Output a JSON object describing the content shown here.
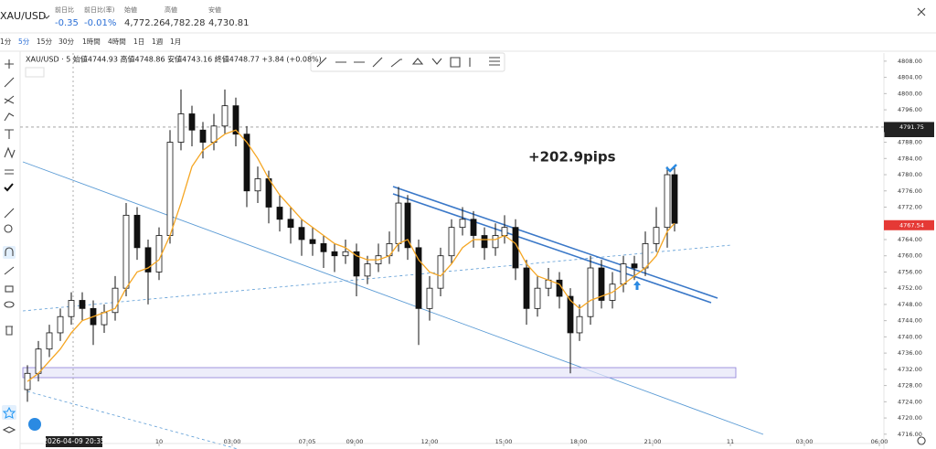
{
  "header": {
    "symbol": "XAU/USD",
    "stats": [
      {
        "label": "前日比",
        "value": "-0.35"
      },
      {
        "label": "前日比(率)",
        "value": "-0.01%"
      },
      {
        "label": "始値",
        "value": "4,772.26"
      },
      {
        "label": "高値",
        "value": "4,782.28"
      },
      {
        "label": "安値",
        "value": "4,730.81"
      }
    ]
  },
  "toolbar": {
    "timeframes": [
      "1分",
      "5分",
      "15分",
      "30分",
      "1時間",
      "4時間",
      "1日",
      "1週",
      "1月"
    ]
  },
  "chart_data": {
    "type": "candlestick",
    "legend_text": "XAU/USD · 5  始値4744.93  高値4748.86  安値4743.16  終値4748.77  +3.84 (+0.08%)",
    "annotation": "+202.9pips",
    "cursor_label": "2026-04-09  20:35",
    "xlim": [
      0,
      470
    ],
    "ylim": [
      4713.7,
      4810
    ],
    "xticks": [
      {
        "value": 74.5,
        "label": "10"
      },
      {
        "value": 114.5,
        "label": "03:00"
      },
      {
        "value": 155.5,
        "label": "07:05"
      },
      {
        "value": 181.5,
        "label": "09:00"
      },
      {
        "value": 222.5,
        "label": "12:00"
      },
      {
        "value": 263,
        "label": "15:00"
      },
      {
        "value": 304,
        "label": "18:00"
      },
      {
        "value": 344.5,
        "label": "21:00"
      },
      {
        "value": 387,
        "label": "11"
      },
      {
        "value": 427.5,
        "label": "03:00"
      },
      {
        "value": 468.5,
        "label": "06:00"
      }
    ],
    "yticks": [
      {
        "value": 4808,
        "label": "4808.00"
      },
      {
        "value": 4804,
        "label": "4804.00"
      },
      {
        "value": 4800,
        "label": "4800.00"
      },
      {
        "value": 4796,
        "label": "4796.00"
      },
      {
        "value": 4792,
        "label": "4792.00"
      },
      {
        "value": 4788,
        "label": "4788.00"
      },
      {
        "value": 4784,
        "label": "4784.00"
      },
      {
        "value": 4780,
        "label": "4780.00"
      },
      {
        "value": 4776,
        "label": "4776.00"
      },
      {
        "value": 4772,
        "label": "4772.00"
      },
      {
        "value": 4768,
        "label": "4768.00"
      },
      {
        "value": 4764,
        "label": "4764.00"
      },
      {
        "value": 4760,
        "label": "4760.00"
      },
      {
        "value": 4756,
        "label": "4756.00"
      },
      {
        "value": 4752,
        "label": "4752.00"
      },
      {
        "value": 4748,
        "label": "4748.00"
      },
      {
        "value": 4744,
        "label": "4744.00"
      },
      {
        "value": 4740,
        "label": "4740.00"
      },
      {
        "value": 4736,
        "label": "4736.00"
      },
      {
        "value": 4732,
        "label": "4732.00"
      },
      {
        "value": 4728,
        "label": "4728.00"
      },
      {
        "value": 4724,
        "label": "4724.00"
      },
      {
        "value": 4720,
        "label": "4720.00"
      },
      {
        "value": 4716,
        "label": "4716.00"
      }
    ],
    "price_lines": [
      {
        "value": 4791.75,
        "color": "#222"
      },
      {
        "value": 4767.54,
        "color": "#e53935"
      }
    ],
    "x": [
      2.5,
      8.5,
      14.5,
      20.5,
      26.5,
      32.5,
      38.5,
      44.5,
      50.5,
      56.5,
      62.5,
      68.5,
      74.5,
      80.5,
      86.5,
      92.5,
      98.5,
      104.5,
      110.5,
      116.5,
      122.5,
      128.5,
      134.5,
      140.5,
      146.5,
      152.5,
      158.5,
      164.5,
      170.5,
      176.5,
      182.5,
      188.5,
      194.5,
      200.5,
      205.5,
      210.5,
      216.5,
      222.5,
      228.5,
      234.5,
      240.5,
      246.5,
      252.5,
      258.5,
      263.5,
      269.5,
      275.5,
      281.5,
      287.5,
      293.5,
      299.5,
      304.5,
      310.5,
      316.5,
      322.5,
      328.5,
      334.5,
      340.5,
      346.5,
      352.5,
      356.5
    ],
    "candles": [
      [
        4727,
        4733,
        4724,
        4731
      ],
      [
        4731,
        4739,
        4729,
        4737
      ],
      [
        4737,
        4743,
        4735,
        4741
      ],
      [
        4741,
        4747,
        4739,
        4745
      ],
      [
        4745,
        4751,
        4743,
        4749
      ],
      [
        4749,
        4751,
        4744,
        4747
      ],
      [
        4747,
        4749,
        4738,
        4743
      ],
      [
        4743,
        4748,
        4741,
        4746
      ],
      [
        4746,
        4755,
        4744,
        4752
      ],
      [
        4752,
        4773,
        4750,
        4770
      ],
      [
        4770,
        4772,
        4759,
        4762
      ],
      [
        4762,
        4764,
        4748,
        4756
      ],
      [
        4756,
        4767,
        4754,
        4765
      ],
      [
        4765,
        4791,
        4763,
        4788
      ],
      [
        4788,
        4801,
        4786,
        4795
      ],
      [
        4795,
        4797,
        4787,
        4791
      ],
      [
        4791,
        4793,
        4784,
        4788
      ],
      [
        4788,
        4795,
        4786,
        4792
      ],
      [
        4792,
        4801,
        4790,
        4797
      ],
      [
        4797,
        4799,
        4787,
        4790
      ],
      [
        4790,
        4792,
        4772,
        4776
      ],
      [
        4776,
        4782,
        4773,
        4779
      ],
      [
        4779,
        4781,
        4768,
        4772
      ],
      [
        4772,
        4775,
        4766,
        4769
      ],
      [
        4769,
        4772,
        4763,
        4767
      ],
      [
        4767,
        4769,
        4760,
        4764
      ],
      [
        4764,
        4767,
        4760,
        4763
      ],
      [
        4763,
        4765,
        4757,
        4761
      ],
      [
        4761,
        4763,
        4756,
        4760
      ],
      [
        4760,
        4764,
        4758,
        4761
      ],
      [
        4761,
        4763,
        4750,
        4755
      ],
      [
        4755,
        4760,
        4753,
        4758
      ],
      [
        4758,
        4763,
        4756,
        4760
      ],
      [
        4760,
        4766,
        4758,
        4763
      ],
      [
        4763,
        4777,
        4761,
        4773
      ],
      [
        4773,
        4775,
        4759,
        4762
      ],
      [
        4762,
        4764,
        4738,
        4747
      ],
      [
        4747,
        4755,
        4744,
        4752
      ],
      [
        4752,
        4762,
        4750,
        4760
      ],
      [
        4760,
        4769,
        4758,
        4767
      ],
      [
        4767,
        4772,
        4765,
        4769
      ],
      [
        4769,
        4771,
        4762,
        4765
      ],
      [
        4765,
        4767,
        4759,
        4762
      ],
      [
        4762,
        4768,
        4760,
        4765
      ],
      [
        4765,
        4770,
        4763,
        4767
      ],
      [
        4767,
        4769,
        4754,
        4757
      ],
      [
        4757,
        4759,
        4743,
        4747
      ],
      [
        4747,
        4755,
        4745,
        4752
      ],
      [
        4752,
        4757,
        4750,
        4754
      ],
      [
        4754,
        4756,
        4747,
        4750
      ],
      [
        4750,
        4752,
        4731,
        4741
      ],
      [
        4741,
        4748,
        4739,
        4745
      ],
      [
        4745,
        4760,
        4743,
        4757
      ],
      [
        4757,
        4759,
        4747,
        4749
      ],
      [
        4749,
        4756,
        4747,
        4753
      ],
      [
        4753,
        4760,
        4751,
        4758
      ],
      [
        4758,
        4760,
        4754,
        4757
      ],
      [
        4757,
        4766,
        4755,
        4763
      ],
      [
        4763,
        4772,
        4761,
        4767
      ],
      [
        4767,
        4782,
        4762,
        4780
      ],
      [
        4780,
        4782,
        4766,
        4768
      ]
    ],
    "ma": {
      "color": "#f5a623",
      "values": [
        4729,
        4731,
        4734,
        4737,
        4741,
        4744,
        4745,
        4746,
        4747,
        4752,
        4756,
        4757,
        4759,
        4765,
        4773,
        4782,
        4786,
        4788,
        4790,
        4791,
        4788,
        4784,
        4779,
        4775,
        4772,
        4769,
        4767,
        4765,
        4763,
        4762,
        4760,
        4759,
        4759,
        4760,
        4763,
        4764,
        4759,
        4756,
        4755,
        4758,
        4762,
        4764,
        4764,
        4764,
        4765,
        4763,
        4758,
        4755,
        4754,
        4753,
        4749,
        4747,
        4749,
        4750,
        4751,
        4753,
        4755,
        4757,
        4760,
        4766,
        4768
      ]
    }
  }
}
